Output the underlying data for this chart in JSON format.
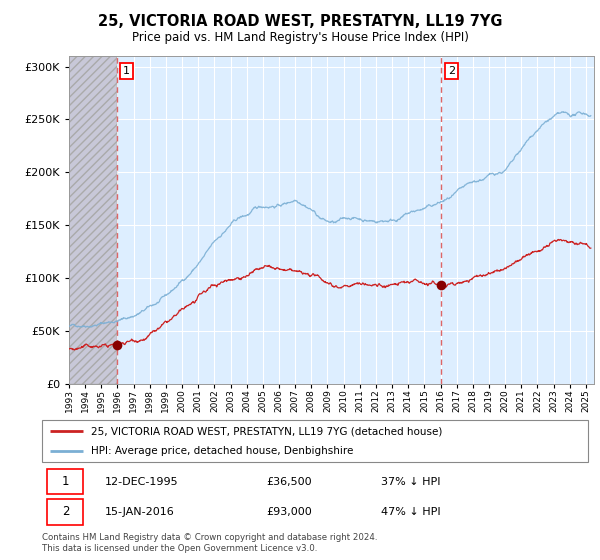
{
  "title": "25, VICTORIA ROAD WEST, PRESTATYN, LL19 7YG",
  "subtitle": "Price paid vs. HM Land Registry's House Price Index (HPI)",
  "legend_line1": "25, VICTORIA ROAD WEST, PRESTATYN, LL19 7YG (detached house)",
  "legend_line2": "HPI: Average price, detached house, Denbighshire",
  "annotation1_date": "12-DEC-1995",
  "annotation1_price": "£36,500",
  "annotation1_hpi": "37% ↓ HPI",
  "annotation2_date": "15-JAN-2016",
  "annotation2_price": "£93,000",
  "annotation2_hpi": "47% ↓ HPI",
  "footer": "Contains HM Land Registry data © Crown copyright and database right 2024.\nThis data is licensed under the Open Government Licence v3.0.",
  "hpi_color": "#7bafd4",
  "price_color": "#cc2222",
  "marker_color": "#880000",
  "vline_color": "#dd6666",
  "bg_plot": "#ddeeff",
  "bg_hatch_color": "#c8c8d8",
  "grid_color": "#ffffff",
  "ylim": [
    0,
    310000
  ],
  "yticks": [
    0,
    50000,
    100000,
    150000,
    200000,
    250000,
    300000
  ],
  "sale1_year": 1995.95,
  "sale1_value": 36500,
  "sale2_year": 2016.04,
  "sale2_value": 93000,
  "xmin": 1993.0,
  "xmax": 2025.5,
  "hatch_xmax": 1995.95
}
